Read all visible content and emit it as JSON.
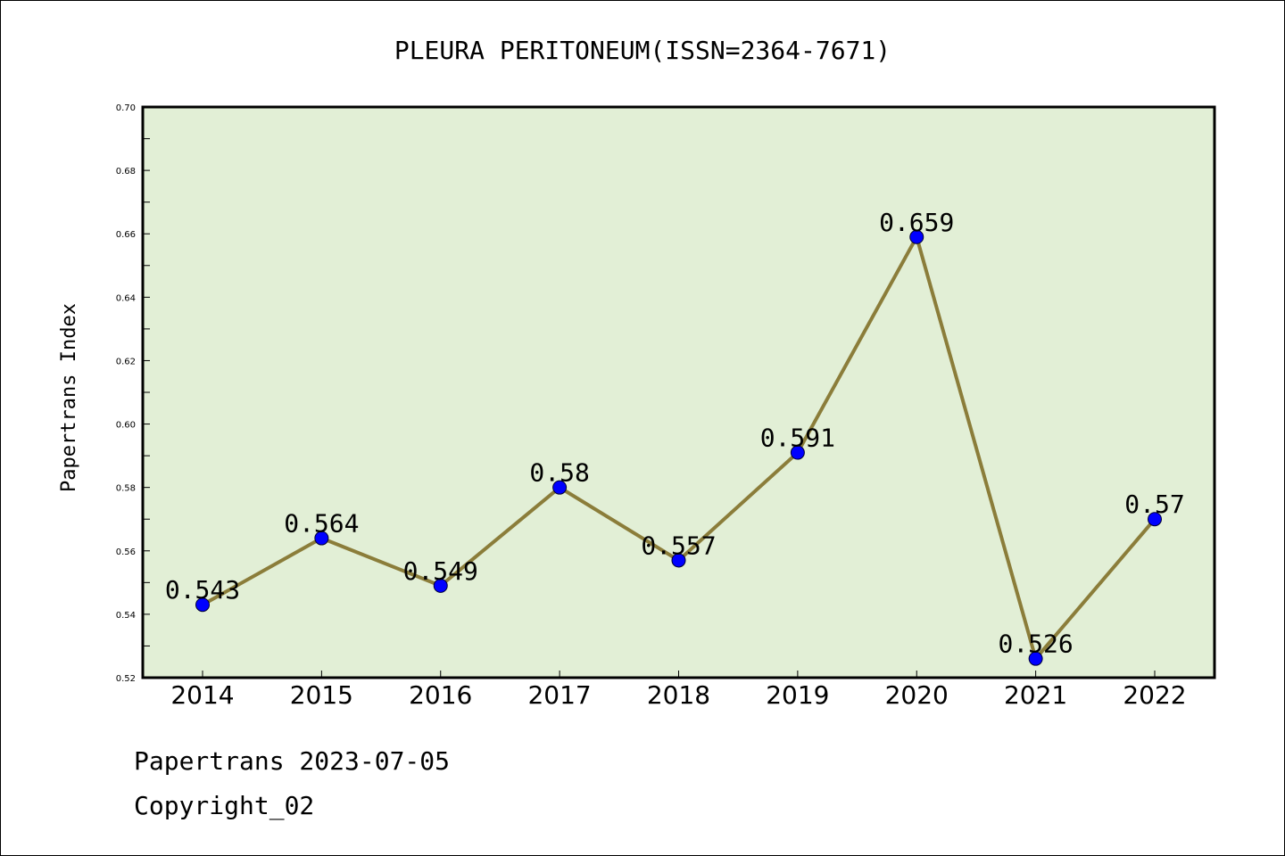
{
  "chart_data": {
    "type": "line",
    "title": "PLEURA PERITONEUM(ISSN=2364-7671)",
    "ylabel": "Papertrans Index",
    "xlabel": "",
    "categories": [
      "2014",
      "2015",
      "2016",
      "2017",
      "2018",
      "2019",
      "2020",
      "2021",
      "2022"
    ],
    "series": [
      {
        "values": [
          0.543,
          0.564,
          0.549,
          0.58,
          0.557,
          0.591,
          0.659,
          0.526,
          0.57
        ],
        "data_labels": [
          "0.543",
          "0.564",
          "0.549",
          "0.58",
          "0.557",
          "0.591",
          "0.659",
          "0.526",
          "0.57"
        ]
      }
    ],
    "ylim": [
      0.52,
      0.7
    ],
    "yticks": [
      "0.52",
      "0.54",
      "0.56",
      "0.58",
      "0.60",
      "0.62",
      "0.64",
      "0.66",
      "0.68",
      "0.70"
    ],
    "grid": false,
    "colors": {
      "line": "#8b7d3a",
      "marker": "#0000ff",
      "plot_background": "#e2efd6"
    }
  },
  "footer": {
    "line1": "Papertrans 2023-07-05",
    "line2": "Copyright_02"
  }
}
